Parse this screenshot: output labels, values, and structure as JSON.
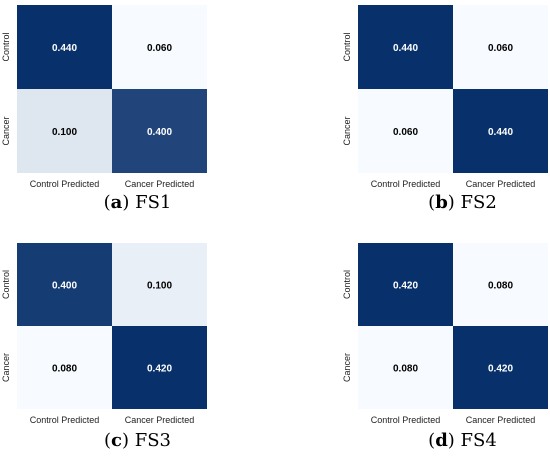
{
  "figure": {
    "panels": [
      {
        "caption_label": "a",
        "caption_text": "FS1"
      },
      {
        "caption_label": "b",
        "caption_text": "FS2"
      },
      {
        "caption_label": "c",
        "caption_text": "FS3"
      },
      {
        "caption_label": "d",
        "caption_text": "FS4"
      }
    ]
  },
  "colors": {
    "cmap_low": "#f7fbff",
    "cmap_high": "#08306b",
    "text_on_dark": "#ffffff",
    "text_on_light": "#000000"
  },
  "chart_data": [
    {
      "type": "heatmap",
      "title": "",
      "x_categories": [
        "Control Predicted",
        "Cancer Predicted"
      ],
      "y_categories": [
        "Control",
        "Cancer"
      ],
      "values": [
        [
          0.44,
          0.06
        ],
        [
          0.1,
          0.4
        ]
      ],
      "value_labels": [
        [
          "0.440",
          "0.060"
        ],
        [
          "0.100",
          "0.400"
        ]
      ],
      "colormap": "Blues",
      "vmin": 0.06,
      "vmax": 0.44
    },
    {
      "type": "heatmap",
      "title": "",
      "x_categories": [
        "Control Predicted",
        "Cancer Predicted"
      ],
      "y_categories": [
        "Control",
        "Cancer"
      ],
      "values": [
        [
          0.44,
          0.06
        ],
        [
          0.06,
          0.44
        ]
      ],
      "value_labels": [
        [
          "0.440",
          "0.060"
        ],
        [
          "0.060",
          "0.440"
        ]
      ],
      "colormap": "Blues",
      "vmin": 0.06,
      "vmax": 0.44
    },
    {
      "type": "heatmap",
      "title": "",
      "x_categories": [
        "Control Predicted",
        "Cancer Predicted"
      ],
      "y_categories": [
        "Control",
        "Cancer"
      ],
      "values": [
        [
          0.4,
          0.1
        ],
        [
          0.08,
          0.42
        ]
      ],
      "value_labels": [
        [
          "0.400",
          "0.100"
        ],
        [
          "0.080",
          "0.420"
        ]
      ],
      "colormap": "Blues",
      "vmin": 0.08,
      "vmax": 0.42
    },
    {
      "type": "heatmap",
      "title": "",
      "x_categories": [
        "Control Predicted",
        "Cancer Predicted"
      ],
      "y_categories": [
        "Control",
        "Cancer"
      ],
      "values": [
        [
          0.42,
          0.08
        ],
        [
          0.08,
          0.42
        ]
      ],
      "value_labels": [
        [
          "0.420",
          "0.080"
        ],
        [
          "0.080",
          "0.420"
        ]
      ],
      "colormap": "Blues",
      "vmin": 0.08,
      "vmax": 0.42
    }
  ]
}
